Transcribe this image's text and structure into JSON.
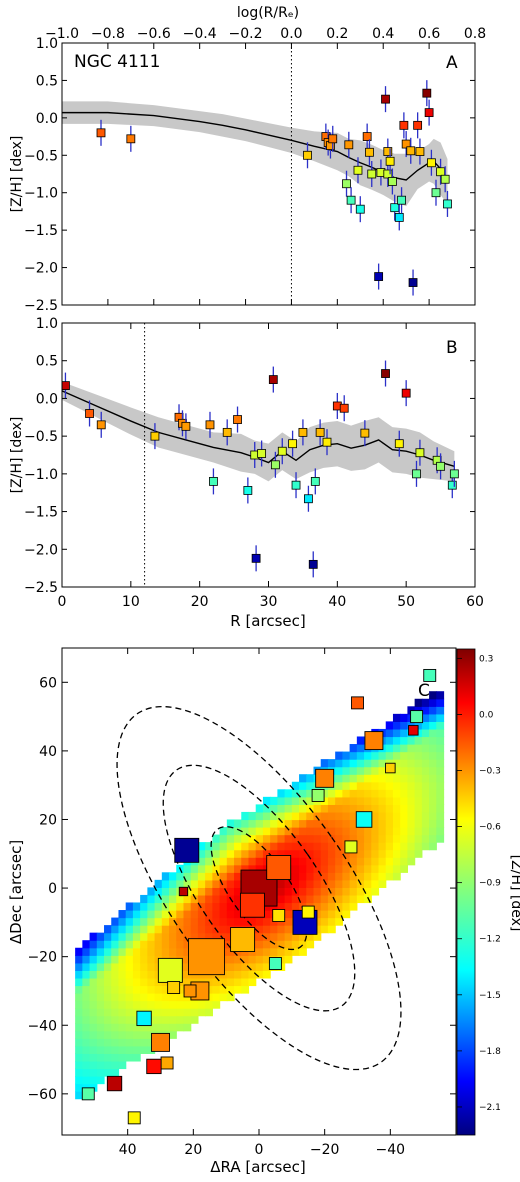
{
  "chart_data": [
    {
      "panel": "A",
      "type": "scatter",
      "title": "NGC 4111",
      "panel_label": "A",
      "xlabel_top": "log(R/Rₑ)",
      "ylabel": "[Z/H] [dex]",
      "top_xlim": [
        -1.0,
        0.8
      ],
      "top_ticks": [
        -1.0,
        -0.8,
        -0.6,
        -0.4,
        -0.2,
        0.0,
        0.2,
        0.4,
        0.6,
        0.8
      ],
      "top_tick_labels": [
        "−1.0",
        "−0.8",
        "−0.6",
        "−0.4",
        "−0.2",
        "0.0",
        "0.2",
        "0.4",
        "0.6",
        "0.8"
      ],
      "ylim": [
        -2.5,
        1.0
      ],
      "yticks": [
        1.0,
        0.5,
        0.0,
        -0.5,
        -1.0,
        -1.5,
        -2.0,
        -2.5
      ],
      "ytick_labels": [
        "1.0",
        "0.5",
        "0.0",
        "−0.5",
        "−1.0",
        "−1.5",
        "−2.0",
        "−2.5"
      ],
      "reference_line_x": 0.0,
      "model_line": {
        "x": [
          -1.0,
          -0.8,
          -0.6,
          -0.4,
          -0.3,
          -0.2,
          -0.1,
          0.0,
          0.1,
          0.2,
          0.25,
          0.3,
          0.35,
          0.4,
          0.45,
          0.5,
          0.55,
          0.6,
          0.62,
          0.65,
          0.68
        ],
        "y": [
          0.07,
          0.07,
          0.03,
          -0.05,
          -0.1,
          -0.16,
          -0.23,
          -0.3,
          -0.38,
          -0.45,
          -0.53,
          -0.6,
          -0.66,
          -0.73,
          -0.8,
          -0.83,
          -0.7,
          -0.6,
          -0.58,
          -0.68,
          -0.85
        ],
        "band": [
          0.15,
          0.15,
          0.14,
          0.14,
          0.15,
          0.15,
          0.16,
          0.17,
          0.2,
          0.25,
          0.25,
          0.3,
          0.3,
          0.3,
          0.32,
          0.35,
          0.25,
          0.25,
          0.3,
          0.35,
          0.3
        ]
      },
      "points": {
        "x": [
          -0.83,
          -0.7,
          0.07,
          0.15,
          0.16,
          0.17,
          0.18,
          0.24,
          0.25,
          0.26,
          0.29,
          0.3,
          0.33,
          0.34,
          0.35,
          0.38,
          0.39,
          0.41,
          0.42,
          0.42,
          0.43,
          0.44,
          0.45,
          0.47,
          0.48,
          0.49,
          0.5,
          0.52,
          0.53,
          0.55,
          0.56,
          0.59,
          0.6,
          0.61,
          0.63,
          0.65,
          0.67,
          0.68
        ],
        "y": [
          -0.2,
          -0.28,
          -0.5,
          -0.25,
          -0.33,
          -0.37,
          -0.28,
          -0.88,
          -0.36,
          -1.1,
          -0.7,
          -1.22,
          -0.25,
          -0.46,
          -0.75,
          -2.12,
          -0.73,
          0.25,
          -0.45,
          -0.75,
          -0.58,
          -0.85,
          -1.2,
          -1.33,
          -1.1,
          -0.1,
          -0.35,
          -0.44,
          -2.2,
          -0.1,
          -0.45,
          0.33,
          0.07,
          -0.6,
          -1.0,
          -0.72,
          -0.82,
          -1.15
        ]
      },
      "color_value": "[Z/H] [dex]"
    },
    {
      "panel": "B",
      "type": "scatter",
      "panel_label": "B",
      "xlabel": "R [arcsec]",
      "ylabel": "[Z/H] [dex]",
      "xlim": [
        0,
        60
      ],
      "xticks": [
        0,
        10,
        20,
        30,
        40,
        50,
        60
      ],
      "xtick_labels": [
        "0",
        "10",
        "20",
        "30",
        "40",
        "50",
        "60"
      ],
      "ylim": [
        -2.5,
        1.0
      ],
      "yticks": [
        1.0,
        0.5,
        0.0,
        -0.5,
        -1.0,
        -1.5,
        -2.0,
        -2.5
      ],
      "ytick_labels": [
        "1.0",
        "0.5",
        "0.0",
        "−0.5",
        "−1.0",
        "−1.5",
        "−2.0",
        "−2.5"
      ],
      "reference_line_x": 12.0,
      "model_line": {
        "x": [
          0,
          5,
          10,
          14,
          18,
          22,
          26,
          28,
          30,
          32,
          34,
          36,
          38,
          40,
          42,
          44,
          46,
          48,
          50,
          52,
          54,
          57
        ],
        "y": [
          0.1,
          -0.1,
          -0.3,
          -0.45,
          -0.55,
          -0.65,
          -0.72,
          -0.78,
          -0.85,
          -0.7,
          -0.82,
          -0.68,
          -0.62,
          -0.6,
          -0.66,
          -0.62,
          -0.55,
          -0.68,
          -0.7,
          -0.75,
          -0.82,
          -0.9
        ],
        "band": [
          0.12,
          0.15,
          0.18,
          0.2,
          0.2,
          0.2,
          0.25,
          0.22,
          0.25,
          0.25,
          0.25,
          0.3,
          0.3,
          0.3,
          0.3,
          0.32,
          0.3,
          0.3,
          0.3,
          0.3,
          0.25,
          0.2
        ]
      },
      "points": {
        "x": [
          0.5,
          4,
          5.7,
          13.5,
          17.0,
          17.5,
          18.0,
          21.5,
          22.0,
          24.0,
          25.5,
          27.0,
          28.0,
          28.2,
          29.0,
          30.7,
          31.0,
          32.0,
          33.5,
          34.0,
          35.0,
          35.8,
          36.5,
          36.8,
          37.5,
          38.5,
          40.0,
          41.0,
          44.0,
          47.0,
          49.0,
          50.0,
          51.5,
          52.0,
          54.5,
          55.0,
          56.7,
          57.0
        ],
        "y": [
          0.17,
          -0.2,
          -0.35,
          -0.5,
          -0.25,
          -0.33,
          -0.37,
          -0.35,
          -1.1,
          -0.45,
          -0.28,
          -1.22,
          -0.75,
          -2.12,
          -0.73,
          0.25,
          -0.88,
          -0.7,
          -0.6,
          -1.15,
          -0.45,
          -1.33,
          -2.2,
          -1.1,
          -0.45,
          -0.58,
          -0.1,
          -0.13,
          -0.46,
          0.33,
          -0.6,
          0.07,
          -1.0,
          -0.72,
          -0.82,
          -0.9,
          -1.15,
          -1.0
        ]
      }
    },
    {
      "panel": "C",
      "type": "heatmap",
      "panel_label": "C",
      "xlabel": "ΔRA [arcsec]",
      "ylabel": "ΔDec [arcsec]",
      "xlim": [
        60,
        -60
      ],
      "xticks": [
        40,
        20,
        0,
        -20,
        -40
      ],
      "xtick_labels": [
        "40",
        "20",
        "0",
        "−20",
        "−40"
      ],
      "ylim": [
        -72,
        70
      ],
      "yticks": [
        60,
        40,
        20,
        0,
        -20,
        -40,
        -60
      ],
      "ytick_labels": [
        "60",
        "40",
        "20",
        "0",
        "−20",
        "−40",
        "−60"
      ],
      "colorbar": {
        "label": "[Z/H] [dex]",
        "range": [
          -2.25,
          0.35
        ],
        "ticks": [
          0.3,
          0.0,
          -0.3,
          -0.6,
          -0.9,
          -1.2,
          -1.5,
          -1.8,
          -2.1
        ],
        "tick_labels": [
          "0.3",
          "0.0",
          "−0.3",
          "−0.6",
          "−0.9",
          "−1.2",
          "−1.5",
          "−1.8",
          "−2.1"
        ]
      },
      "ellipses": [
        {
          "a": 21,
          "b": 9
        },
        {
          "a": 42,
          "b": 18
        },
        {
          "a": 62,
          "b": 27
        }
      ],
      "ellipse_pa_deg": -35,
      "squares": {
        "ra": [
          0,
          -6,
          2,
          -6,
          -14,
          16,
          -20,
          -32,
          -28,
          -35,
          -30,
          -15,
          -5,
          5,
          27,
          18,
          21,
          22,
          26,
          28,
          35,
          38,
          44,
          30,
          32,
          -18,
          -40,
          -47,
          -48,
          -52,
          23,
          52
        ],
        "dec": [
          0,
          6,
          -5,
          -8,
          -10,
          -20,
          32,
          20,
          12,
          43,
          54,
          -7,
          -22,
          -15,
          -24,
          -30,
          -30,
          11,
          -29,
          -51,
          -38,
          -67,
          -57,
          -45,
          -52,
          27,
          35,
          46,
          50,
          62,
          -1,
          -60
        ],
        "zh": [
          0.25,
          -0.2,
          -0.1,
          -0.55,
          -2.1,
          -0.35,
          -0.3,
          -1.25,
          -0.7,
          -0.3,
          -0.2,
          -0.6,
          -1.1,
          -0.45,
          -0.7,
          -0.35,
          -0.35,
          -2.2,
          -0.5,
          -0.4,
          -1.3,
          -0.6,
          0.2,
          -0.3,
          0.0,
          -0.9,
          -0.5,
          0.1,
          -1.05,
          -1.1,
          0.2,
          -1.05
        ],
        "size": [
          3,
          2,
          2,
          1,
          2,
          3,
          1.5,
          1.3,
          1,
          1.5,
          1,
          1,
          1,
          2,
          2,
          1.5,
          1,
          2,
          1,
          1,
          1.2,
          1,
          1.2,
          1.5,
          1.2,
          1,
          0.8,
          0.8,
          1,
          1,
          0.7,
          1
        ]
      },
      "map_center_value": 0.25
    }
  ]
}
